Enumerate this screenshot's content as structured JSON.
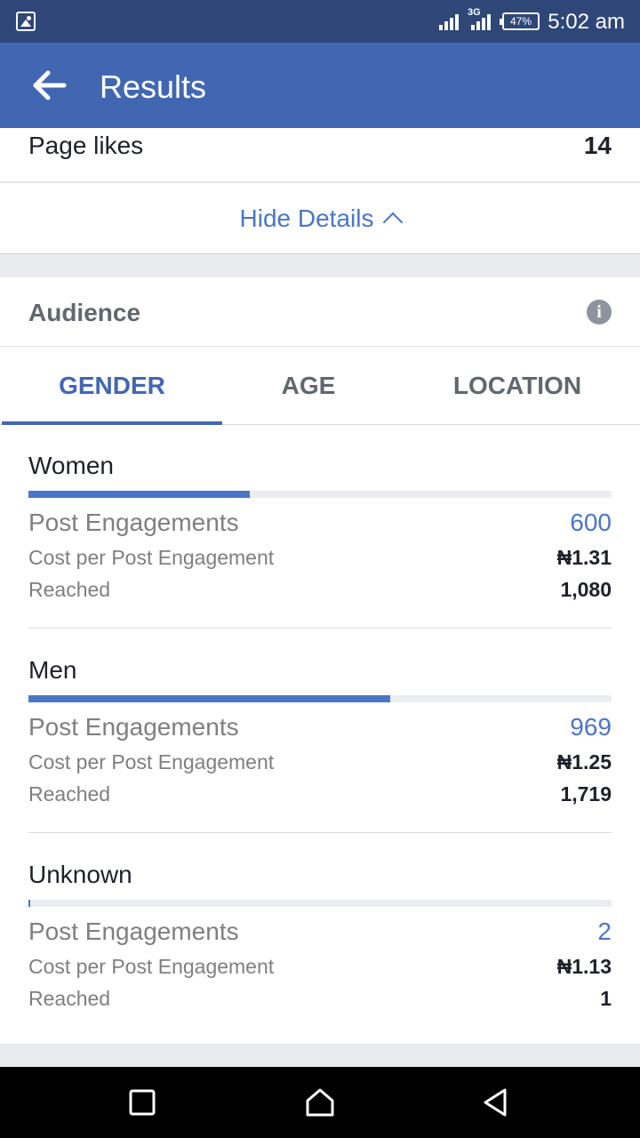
{
  "status_bar": {
    "time": "5:02 am",
    "battery": "47%",
    "network": "3G"
  },
  "app_bar": {
    "title": "Results"
  },
  "page_likes": {
    "label": "Page likes",
    "value": "14"
  },
  "hide_details": {
    "label": "Hide Details"
  },
  "audience": {
    "title": "Audience"
  },
  "tabs": [
    {
      "label": "GENDER",
      "active": true
    },
    {
      "label": "AGE",
      "active": false
    },
    {
      "label": "LOCATION",
      "active": false
    }
  ],
  "groups": [
    {
      "title": "Women",
      "engagement_share": 0.38,
      "post_engagements_label": "Post Engagements",
      "post_engagements": "600",
      "cost_label": "Cost per Post Engagement",
      "cost": "₦1.31",
      "reached_label": "Reached",
      "reached": "1,080"
    },
    {
      "title": "Men",
      "engagement_share": 0.62,
      "post_engagements_label": "Post Engagements",
      "post_engagements": "969",
      "cost_label": "Cost per Post Engagement",
      "cost": "₦1.25",
      "reached_label": "Reached",
      "reached": "1,719"
    },
    {
      "title": "Unknown",
      "engagement_share": 0.002,
      "post_engagements_label": "Post Engagements",
      "post_engagements": "2",
      "cost_label": "Cost per Post Engagement",
      "cost": "₦1.13",
      "reached_label": "Reached",
      "reached": "1"
    }
  ],
  "colors": {
    "primary": "#4267b2",
    "status_bar": "#2f4678",
    "accent_link": "#4a76c8"
  }
}
